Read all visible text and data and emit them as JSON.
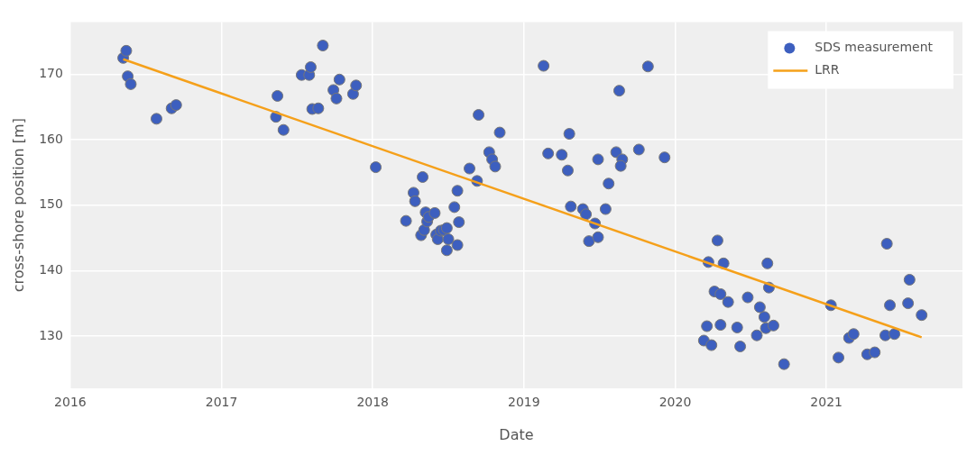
{
  "chart_data": {
    "type": "scatter",
    "xlabel": "Date",
    "ylabel": "cross-shore position [m]",
    "xlim": [
      2016,
      2021.9
    ],
    "xticks": [
      2016,
      2017,
      2018,
      2019,
      2020,
      2021
    ],
    "ylim": [
      122,
      178
    ],
    "yticks": [
      130,
      140,
      150,
      160,
      170
    ],
    "grid": true,
    "legend": "top right",
    "series": [
      {
        "name": "SDS measurement",
        "marker": "circle",
        "color": "#3d5fbf",
        "x": [
          2016.35,
          2016.37,
          2016.38,
          2016.4,
          2016.57,
          2016.67,
          2016.7,
          2017.36,
          2017.37,
          2017.41,
          2017.53,
          2017.58,
          2017.59,
          2017.6,
          2017.64,
          2017.67,
          2017.74,
          2017.76,
          2017.78,
          2017.87,
          2017.89,
          2018.02,
          2018.22,
          2018.27,
          2018.28,
          2018.33,
          2018.32,
          2018.34,
          2018.35,
          2018.36,
          2018.37,
          2018.41,
          2018.42,
          2018.43,
          2018.45,
          2018.47,
          2018.49,
          2018.49,
          2018.5,
          2018.54,
          2018.56,
          2018.56,
          2018.57,
          2018.64,
          2018.69,
          2018.7,
          2018.77,
          2018.79,
          2018.81,
          2018.84,
          2019.13,
          2019.16,
          2019.25,
          2019.29,
          2019.3,
          2019.31,
          2019.39,
          2019.41,
          2019.43,
          2019.47,
          2019.49,
          2019.49,
          2019.54,
          2019.56,
          2019.61,
          2019.63,
          2019.65,
          2019.64,
          2019.76,
          2019.82,
          2019.93,
          2020.19,
          2020.21,
          2020.22,
          2020.24,
          2020.26,
          2020.28,
          2020.3,
          2020.3,
          2020.32,
          2020.35,
          2020.41,
          2020.43,
          2020.48,
          2020.54,
          2020.56,
          2020.59,
          2020.6,
          2020.61,
          2020.62,
          2020.65,
          2020.72,
          2021.03,
          2021.08,
          2021.15,
          2021.18,
          2021.27,
          2021.32,
          2021.39,
          2021.4,
          2021.42,
          2021.45,
          2021.54,
          2021.55,
          2021.63
        ],
        "values": [
          172.5,
          173.6,
          169.7,
          168.5,
          163.2,
          164.8,
          165.3,
          163.5,
          166.7,
          161.5,
          169.9,
          169.9,
          171.1,
          164.7,
          164.8,
          174.4,
          167.6,
          166.3,
          169.2,
          167.0,
          168.3,
          155.8,
          147.6,
          151.9,
          150.6,
          154.3,
          145.4,
          146.2,
          148.9,
          147.5,
          148.2,
          148.8,
          145.5,
          144.8,
          146.1,
          146.2,
          146.5,
          143.1,
          144.8,
          149.7,
          143.9,
          152.2,
          147.4,
          155.6,
          153.7,
          163.8,
          158.1,
          157.0,
          155.9,
          161.1,
          171.3,
          157.9,
          157.7,
          155.3,
          160.9,
          149.8,
          149.4,
          148.6,
          144.5,
          147.2,
          145.1,
          157.0,
          149.4,
          153.3,
          158.1,
          167.5,
          157.0,
          156.0,
          158.5,
          171.2,
          157.3,
          129.3,
          131.5,
          141.3,
          128.6,
          136.8,
          144.6,
          136.4,
          131.7,
          141.1,
          135.2,
          131.3,
          128.4,
          135.9,
          130.1,
          134.4,
          132.9,
          131.2,
          141.1,
          137.4,
          131.6,
          125.7,
          134.7,
          126.7,
          129.7,
          130.3,
          127.2,
          127.5,
          130.1,
          144.1,
          134.7,
          130.3,
          135.0,
          138.6,
          133.2
        ]
      },
      {
        "name": "LRR",
        "type": "line",
        "line_style": "solid",
        "color": "#f5a01a",
        "x": [
          2016.35,
          2021.63
        ],
        "values": [
          172.3,
          129.8
        ]
      }
    ]
  }
}
